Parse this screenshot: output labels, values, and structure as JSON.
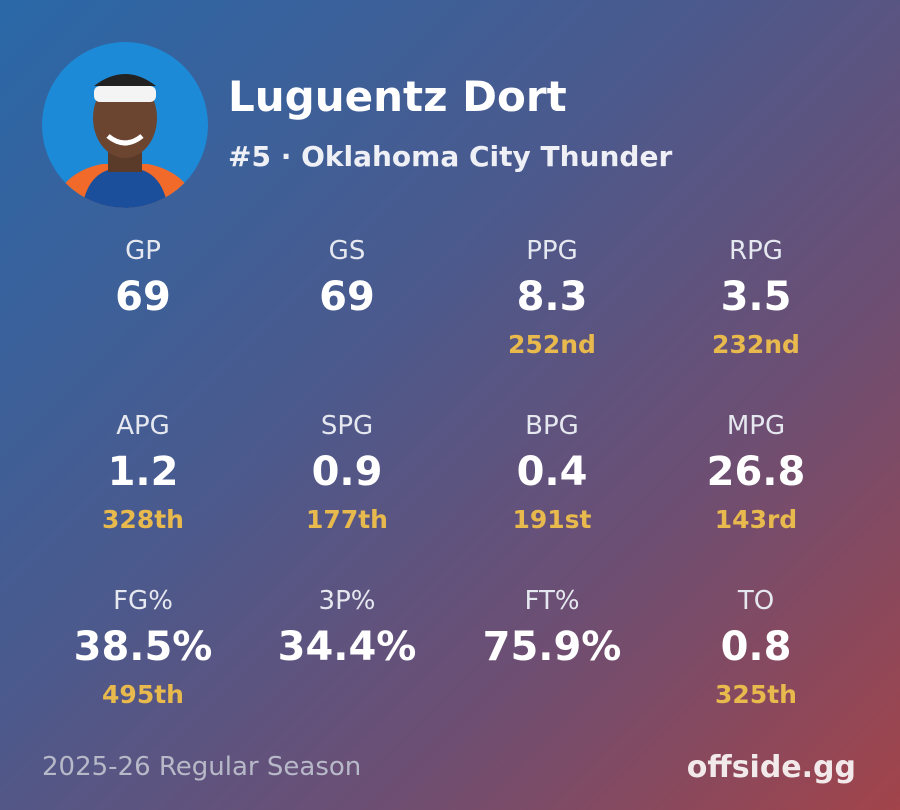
{
  "header": {
    "name": "Luguentz Dort",
    "subtitle": "#5 · Oklahoma City Thunder"
  },
  "stats": [
    {
      "label": "GP",
      "value": "69"
    },
    {
      "label": "GS",
      "value": "69"
    },
    {
      "label": "PPG",
      "value": "8.3",
      "rank": "252nd"
    },
    {
      "label": "RPG",
      "value": "3.5",
      "rank": "232nd"
    },
    {
      "label": "APG",
      "value": "1.2",
      "rank": "328th"
    },
    {
      "label": "SPG",
      "value": "0.9",
      "rank": "177th"
    },
    {
      "label": "BPG",
      "value": "0.4",
      "rank": "191st"
    },
    {
      "label": "MPG",
      "value": "26.8",
      "rank": "143rd"
    },
    {
      "label": "FG%",
      "value": "38.5%",
      "rank": "495th"
    },
    {
      "label": "3P%",
      "value": "34.4%"
    },
    {
      "label": "FT%",
      "value": "75.9%"
    },
    {
      "label": "TO",
      "value": "0.8",
      "rank": "325th"
    }
  ],
  "footer": {
    "season": "2025-26 Regular Season",
    "brand": "offside.gg"
  }
}
